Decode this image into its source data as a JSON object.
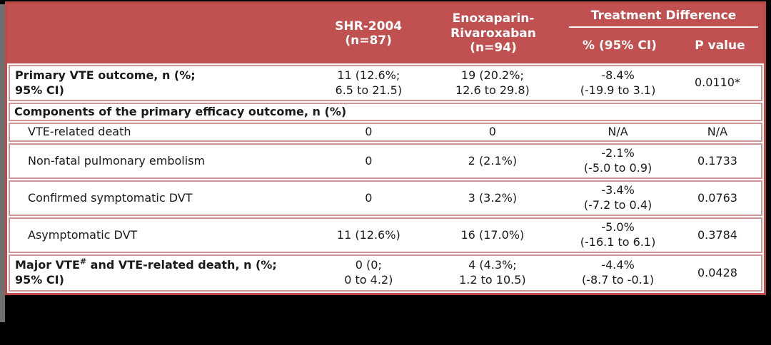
{
  "colors": {
    "header_bg": "#c05150",
    "outer_border": "#bc4a48",
    "row_border": "#d09494",
    "header_text": "#ffffff",
    "body_text": "#1a1a1a",
    "page_bg": "#000000",
    "side_strip": "#6f6f6f"
  },
  "table": {
    "header": {
      "arm1": "SHR-2004\n(n=87)",
      "arm2": "Enoxaparin-\nRivaroxaban\n(n=94)",
      "group_title": "Treatment Difference",
      "sub_ci": "% (95% CI)",
      "sub_p": "P value"
    },
    "rows": [
      {
        "label": "Primary VTE outcome, n (%;\n95% CI)",
        "shr": "11 (12.6%;\n6.5 to 21.5)",
        "enox": "19 (20.2%;\n12.6 to 29.8)",
        "diff": "-8.4%\n(-19.9 to 3.1)",
        "p": "0.0110*"
      },
      {
        "label": "Components of the primary efficacy outcome, n (%)"
      },
      {
        "label": "VTE-related death",
        "shr": "0",
        "enox": "0",
        "diff": "N/A",
        "p": "N/A"
      },
      {
        "label": "Non-fatal pulmonary embolism",
        "shr": "0",
        "enox": "2 (2.1%)",
        "diff": "-2.1%\n(-5.0 to 0.9)",
        "p": "0.1733"
      },
      {
        "label": "Confirmed symptomatic DVT",
        "shr": "0",
        "enox": "3 (3.2%)",
        "diff": "-3.4%\n(-7.2 to 0.4)",
        "p": "0.0763"
      },
      {
        "label": "Asymptomatic DVT",
        "shr": "11 (12.6%)",
        "enox": "16 (17.0%)",
        "diff": "-5.0%\n(-16.1 to 6.1)",
        "p": "0.3784"
      },
      {
        "label_pre": "Major VTE",
        "label_sup": "#",
        "label_post": " and VTE-related death, n (%;\n95% CI)",
        "shr": "0 (0;\n0 to 4.2)",
        "enox": "4 (4.3%;\n1.2 to 10.5)",
        "diff": "-4.4%\n(-8.7 to -0.1)",
        "p": "0.0428"
      }
    ]
  }
}
